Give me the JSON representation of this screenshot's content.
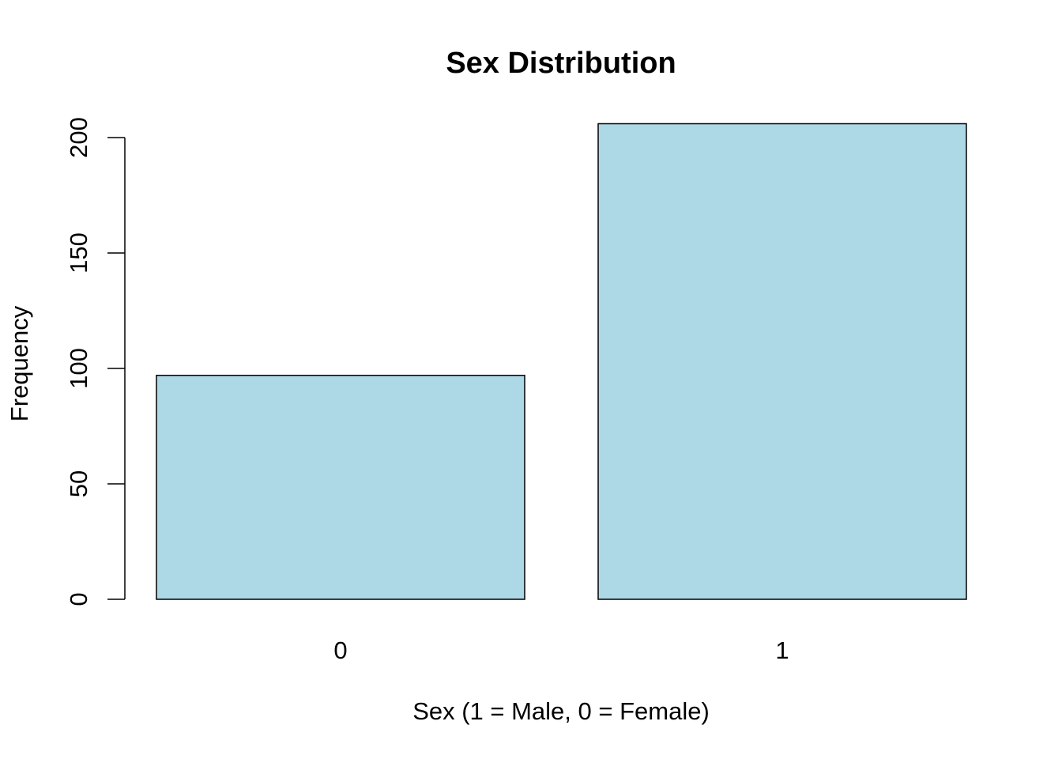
{
  "chart_data": {
    "type": "bar",
    "title": "Sex Distribution",
    "xlabel": "Sex (1 = Male, 0 = Female)",
    "ylabel": "Frequency",
    "categories": [
      "0",
      "1"
    ],
    "values": [
      97,
      206
    ],
    "ylim": [
      0,
      200
    ],
    "yticks": [
      0,
      50,
      100,
      150,
      200
    ],
    "ytick_labels": [
      "0",
      "50",
      "100",
      "150",
      "200"
    ],
    "bar_color": "#add8e6",
    "grid": false,
    "legend": "none"
  }
}
